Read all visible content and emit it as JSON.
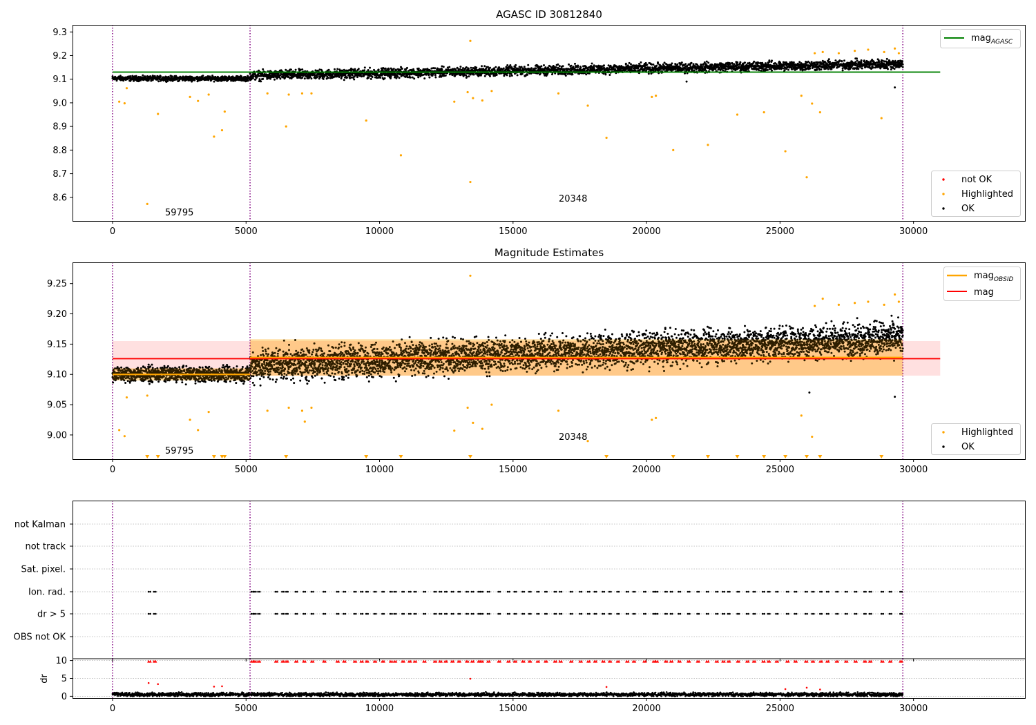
{
  "chart_data": [
    {
      "type": "scatter",
      "title": "AGASC ID 30812840",
      "xlabel": "",
      "ylabel": "",
      "xlim": [
        -1500,
        34200
      ],
      "ylim": [
        8.5,
        9.33
      ],
      "xticks": [
        0,
        5000,
        10000,
        15000,
        20000,
        25000,
        30000
      ],
      "yticks": [
        8.6,
        8.7,
        8.8,
        8.9,
        9.0,
        9.1,
        9.2,
        9.3
      ],
      "ytick_labels": [
        "8.6",
        "8.7",
        "8.8",
        "8.9",
        "9.0",
        "9.1",
        "9.2",
        "9.3"
      ],
      "obsid_boundaries_x": [
        0,
        5150,
        29600
      ],
      "annotations": [
        {
          "text": "59795",
          "x": 2000,
          "y": 8.53
        },
        {
          "text": "20348",
          "x": 16700,
          "y": 8.59
        }
      ],
      "reference_lines": [
        {
          "name": "mag_AGASC",
          "legend_main": "mag",
          "legend_sub": "AGASC",
          "y": 9.13,
          "x_range": [
            0,
            31000
          ],
          "color": "#008000"
        }
      ],
      "series": [
        {
          "name": "not OK",
          "color": "#ff0000"
        },
        {
          "name": "Highlighted",
          "color": "#ffa500",
          "points": [
            [
              250,
              9.005
            ],
            [
              450,
              8.998
            ],
            [
              530,
              9.062
            ],
            [
              1300,
              8.572
            ],
            [
              1700,
              8.953
            ],
            [
              2900,
              9.025
            ],
            [
              3200,
              9.008
            ],
            [
              3600,
              9.035
            ],
            [
              3800,
              8.857
            ],
            [
              4100,
              8.884
            ],
            [
              4200,
              8.963
            ],
            [
              5800,
              9.04
            ],
            [
              6500,
              8.9
            ],
            [
              6600,
              9.035
            ],
            [
              7100,
              9.04
            ],
            [
              7450,
              9.04
            ],
            [
              9500,
              8.925
            ],
            [
              10800,
              8.778
            ],
            [
              12800,
              9.005
            ],
            [
              13300,
              9.045
            ],
            [
              13400,
              9.262
            ],
            [
              13400,
              8.665
            ],
            [
              13500,
              9.02
            ],
            [
              13850,
              9.01
            ],
            [
              14200,
              9.05
            ],
            [
              16700,
              9.04
            ],
            [
              17800,
              8.988
            ],
            [
              18500,
              8.852
            ],
            [
              20200,
              9.025
            ],
            [
              20350,
              9.03
            ],
            [
              21000,
              8.8
            ],
            [
              22300,
              8.822
            ],
            [
              23400,
              8.95
            ],
            [
              24400,
              8.96
            ],
            [
              25200,
              8.795
            ],
            [
              25800,
              9.03
            ],
            [
              26000,
              8.685
            ],
            [
              26200,
              8.997
            ],
            [
              26500,
              8.96
            ],
            [
              28800,
              8.935
            ],
            [
              26300,
              9.21
            ],
            [
              26600,
              9.215
            ],
            [
              27200,
              9.21
            ],
            [
              27800,
              9.22
            ],
            [
              28300,
              9.225
            ],
            [
              28900,
              9.215
            ],
            [
              29300,
              9.23
            ],
            [
              29450,
              9.21
            ]
          ]
        },
        {
          "name": "OK",
          "color": "#000000",
          "segments": [
            {
              "x": [
                0,
                5150
              ],
              "y_start": 9.103,
              "y_end": 9.103,
              "half_width": 0.015
            },
            {
              "x": [
                5150,
                29600
              ],
              "y_start": 9.115,
              "y_end": 9.165,
              "half_width": 0.03
            }
          ],
          "outliers": [
            [
              21500,
              9.09
            ],
            [
              29300,
              9.065
            ]
          ]
        }
      ],
      "legends": [
        {
          "position": "upper right",
          "entries": [
            "mag_AGASC"
          ]
        },
        {
          "position": "lower right",
          "entries": [
            "not OK",
            "Highlighted",
            "OK"
          ]
        }
      ]
    },
    {
      "type": "scatter",
      "title": "Magnitude Estimates",
      "xlabel": "",
      "ylabel": "",
      "xlim": [
        -1500,
        34200
      ],
      "ylim": [
        8.96,
        9.285
      ],
      "xticks": [
        0,
        5000,
        10000,
        15000,
        20000,
        25000,
        30000
      ],
      "yticks": [
        9.0,
        9.05,
        9.1,
        9.15,
        9.2,
        9.25
      ],
      "ytick_labels": [
        "9.00",
        "9.05",
        "9.10",
        "9.15",
        "9.20",
        "9.25"
      ],
      "obsid_boundaries_x": [
        0,
        5150,
        29600
      ],
      "annotations": [
        {
          "text": "59795",
          "x": 2000,
          "y": 8.972
        },
        {
          "text": "20348",
          "x": 16700,
          "y": 8.997
        }
      ],
      "reference_lines": [
        {
          "name": "mag",
          "y": 9.126,
          "x_range": [
            0,
            31000
          ],
          "color": "#ff0000"
        },
        {
          "name": "mag_OBSID",
          "legend_main": "mag",
          "legend_sub": "OBSID",
          "color": "#ffa500",
          "segments": [
            {
              "x": [
                0,
                5150
              ],
              "y": 9.1
            },
            {
              "x": [
                5150,
                29600
              ],
              "y": 9.128
            }
          ]
        }
      ],
      "bands": [
        {
          "name": "mag ± 1σ",
          "color": "#ff0000",
          "opacity": 0.12,
          "x": [
            0,
            31000
          ],
          "y": [
            9.098,
            9.155
          ]
        },
        {
          "name": "mag_OBSID ± 1σ (first OBSID)",
          "color": "#ffa500",
          "opacity": 0.25,
          "x": [
            0,
            5150
          ],
          "y": [
            9.09,
            9.11
          ]
        },
        {
          "name": "mag_OBSID ± 1σ (second OBSID)",
          "color": "#ffa500",
          "opacity": 0.25,
          "x": [
            5150,
            29600
          ],
          "y": [
            9.098,
            9.158
          ]
        }
      ],
      "series": [
        {
          "name": "Highlighted",
          "color": "#ffa500",
          "points": [
            [
              250,
              9.008
            ],
            [
              450,
              8.998
            ],
            [
              530,
              9.062
            ],
            [
              1300,
              9.065
            ],
            [
              2900,
              9.025
            ],
            [
              3200,
              9.008
            ],
            [
              3600,
              9.038
            ],
            [
              5800,
              9.04
            ],
            [
              6600,
              9.045
            ],
            [
              7100,
              9.04
            ],
            [
              7450,
              9.045
            ],
            [
              7200,
              9.022
            ],
            [
              12800,
              9.007
            ],
            [
              13300,
              9.045
            ],
            [
              13400,
              9.263
            ],
            [
              13500,
              9.02
            ],
            [
              13850,
              9.01
            ],
            [
              14200,
              9.05
            ],
            [
              16700,
              9.04
            ],
            [
              17800,
              8.99
            ],
            [
              20200,
              9.025
            ],
            [
              20350,
              9.028
            ],
            [
              25800,
              9.032
            ],
            [
              26200,
              8.997
            ],
            [
              26300,
              9.213
            ],
            [
              26600,
              9.225
            ],
            [
              27200,
              9.215
            ],
            [
              27800,
              9.218
            ],
            [
              28300,
              9.22
            ],
            [
              28900,
              9.215
            ],
            [
              29300,
              9.232
            ],
            [
              29450,
              9.22
            ]
          ],
          "below_range_markers_x": [
            1300,
            1700,
            3800,
            4100,
            4200,
            6500,
            9500,
            10800,
            13400,
            18500,
            21000,
            22300,
            23400,
            24400,
            25200,
            26000,
            26500,
            28800
          ]
        },
        {
          "name": "OK",
          "color": "#000000",
          "segments": [
            {
              "x": [
                0,
                5150
              ],
              "y_start": 9.1,
              "y_end": 9.1,
              "half_width": 0.018
            },
            {
              "x": [
                5150,
                29600
              ],
              "y_start": 9.115,
              "y_end": 9.16,
              "half_width": 0.04
            }
          ],
          "outliers": [
            [
              26100,
              9.07
            ],
            [
              29300,
              9.063
            ]
          ]
        }
      ],
      "legends": [
        {
          "position": "upper right",
          "entries": [
            "mag_OBSID",
            "mag"
          ]
        },
        {
          "position": "lower right",
          "entries": [
            "Highlighted",
            "OK"
          ]
        }
      ]
    },
    {
      "type": "scatter",
      "title": "",
      "xlabel": "",
      "ylabel": "",
      "xlim": [
        -1500,
        34200
      ],
      "xticks": [
        0,
        5000,
        10000,
        15000,
        20000,
        25000,
        30000
      ],
      "obsid_boundaries_x": [
        0,
        5150,
        29600
      ],
      "flag_rows": [
        "not Kalman",
        "not track",
        "Sat. pixel.",
        "Ion. rad.",
        "dr > 5",
        "OBS not OK"
      ],
      "flag_events_x": [
        1350,
        1550,
        5200,
        5300,
        5450,
        6100,
        6350,
        6500,
        6850,
        7150,
        7450,
        7900,
        8400,
        8650,
        9050,
        9300,
        9500,
        9800,
        10100,
        10400,
        10550,
        10850,
        11100,
        11300,
        11650,
        12050,
        12250,
        12450,
        12700,
        12950,
        13250,
        13450,
        13700,
        13800,
        14050,
        14450,
        14800,
        15050,
        15350,
        15600,
        15900,
        16200,
        16550,
        16750,
        17150,
        17500,
        17800,
        18050,
        18350,
        18600,
        18900,
        19250,
        19500,
        19900,
        20250,
        20350,
        20700,
        20900,
        21200,
        21550,
        21900,
        22250,
        22600,
        22850,
        23050,
        23400,
        23750,
        24000,
        24350,
        24550,
        24850,
        25250,
        25550,
        25950,
        26200,
        26500,
        26750,
        27100,
        27450,
        27800,
        28150,
        28350,
        28800,
        29100,
        29500
      ],
      "flagged_rows": [
        "Ion. rad.",
        "dr > 5"
      ]
    },
    {
      "type": "scatter",
      "title": "",
      "xlabel": "",
      "ylabel": "dr",
      "xlim": [
        -1500,
        34200
      ],
      "ylim": [
        -0.5,
        10.5
      ],
      "xticks": [
        0,
        5000,
        10000,
        15000,
        20000,
        25000,
        30000
      ],
      "xtick_labels": [
        "0",
        "5000",
        "10000",
        "15000",
        "20000",
        "25000",
        "30000"
      ],
      "yticks": [
        0,
        5,
        10
      ],
      "ytick_labels": [
        "0",
        "5",
        "10"
      ],
      "obsid_boundaries_x": [
        0,
        5150,
        29600
      ],
      "dr_baseline": {
        "x": [
          0,
          29600
        ],
        "y": 0.5,
        "spread": 0.7,
        "color": "#000000"
      },
      "dr_outliers": [
        [
          1350,
          3.7
        ],
        [
          1700,
          3.4
        ],
        [
          13400,
          4.9
        ],
        [
          3800,
          2.7
        ],
        [
          4100,
          2.8
        ],
        [
          18500,
          2.6
        ],
        [
          25200,
          2.0
        ],
        [
          26000,
          2.4
        ],
        [
          26500,
          1.9
        ]
      ],
      "clipped_marker": {
        "y": 9.8,
        "color": "#ff0000",
        "shape": "triangle-up"
      }
    }
  ]
}
